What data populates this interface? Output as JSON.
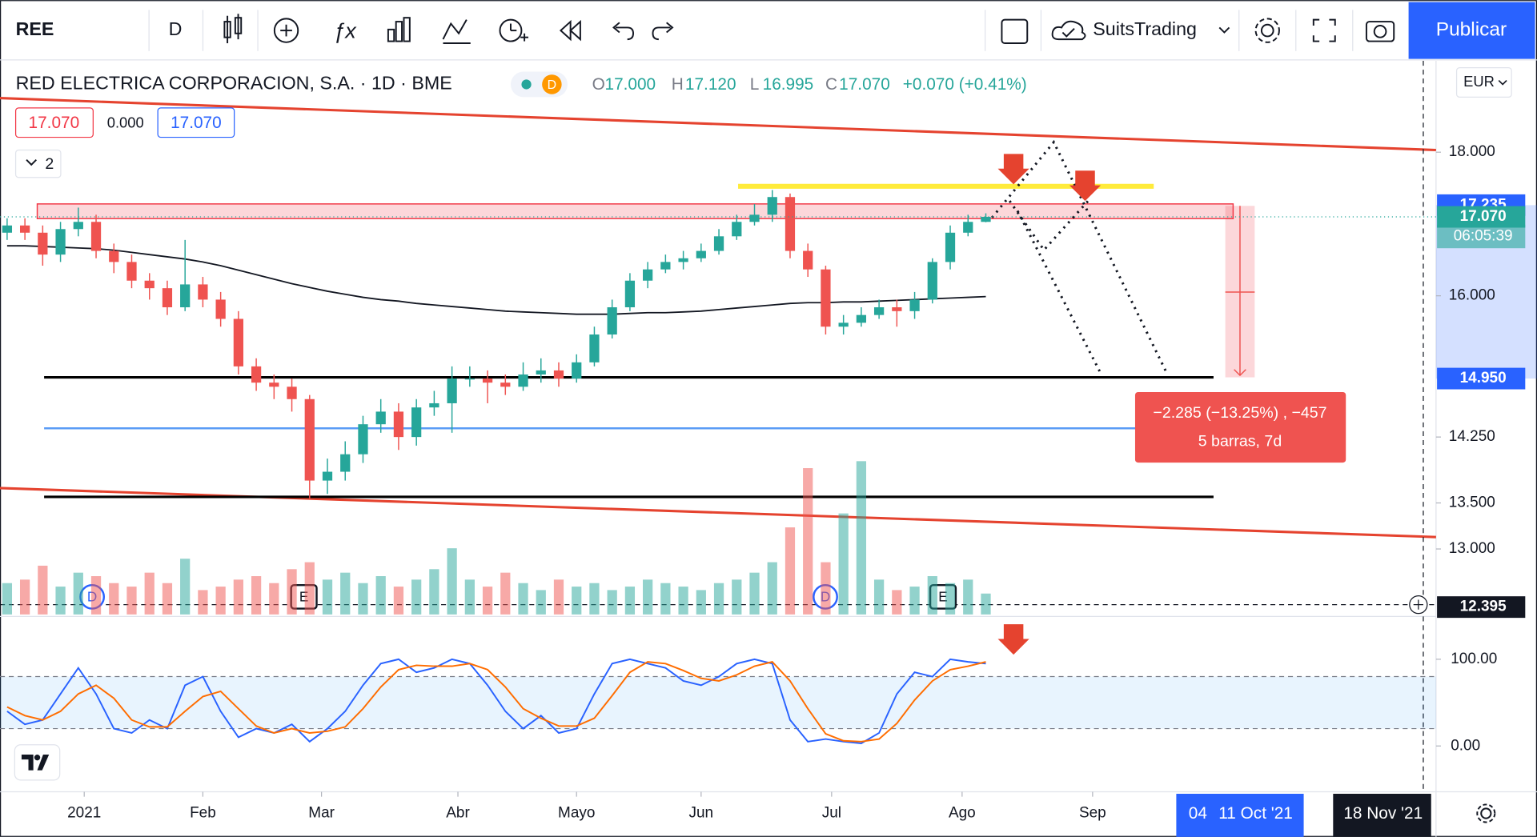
{
  "toolbar": {
    "symbol": "REE",
    "interval": "D",
    "account": "SuitsTrading",
    "publish": "Publicar"
  },
  "legend": {
    "title": "RED ELECTRICA CORPORACION, S.A. · 1D · BME",
    "badge": "D",
    "open_label": "O",
    "open": "17.000",
    "high_label": "H",
    "high": "17.120",
    "low_label": "L",
    "low": "16.995",
    "close_label": "C",
    "close": "17.070",
    "change": "+0.070 (+0.41%)",
    "inputs": [
      "17.070",
      "0.000",
      "17.070"
    ],
    "collapsed_count": "2"
  },
  "currency": "EUR",
  "events": [
    "D",
    "E",
    "D",
    "E"
  ],
  "measure": {
    "line1": "−2.285 (−13.25%) , −457",
    "line2": "5 barras, 7d"
  },
  "time_tags": [
    "04",
    "11 Oct '21",
    "18 Nov '21"
  ],
  "chart_data": [
    {
      "type": "candlestick",
      "x": [
        -13,
        -10,
        -7,
        -4,
        -1,
        2,
        5,
        8,
        11,
        14,
        17,
        20,
        23,
        26,
        29,
        32,
        35,
        38,
        41,
        44,
        47,
        50,
        53,
        56,
        59,
        62,
        65,
        68,
        71,
        74,
        77,
        80,
        83,
        86,
        89,
        92,
        95,
        98,
        101,
        104,
        107,
        110,
        113,
        116,
        119,
        122,
        125,
        128,
        131,
        134,
        137,
        140,
        143,
        146,
        149,
        152
      ],
      "open": [
        16.85,
        16.95,
        16.85,
        16.55,
        16.9,
        17.0,
        16.6,
        16.45,
        16.2,
        16.1,
        15.85,
        16.15,
        15.95,
        15.7,
        15.1,
        14.9,
        14.85,
        14.7,
        13.75,
        13.85,
        14.05,
        14.4,
        14.55,
        14.25,
        14.6,
        14.65,
        14.95,
        14.95,
        14.9,
        14.85,
        15.0,
        15.05,
        14.95,
        15.15,
        15.5,
        15.85,
        16.2,
        16.35,
        16.45,
        16.5,
        16.6,
        16.8,
        17.0,
        17.1,
        17.35,
        16.6,
        16.35,
        15.6,
        15.65,
        15.75,
        15.85,
        15.8,
        15.95,
        16.45,
        16.85,
        17.0
      ],
      "high": [
        17.05,
        17.05,
        16.95,
        17.0,
        17.2,
        17.1,
        16.7,
        16.55,
        16.3,
        16.2,
        16.75,
        16.25,
        16.05,
        15.8,
        15.2,
        15.0,
        14.95,
        14.75,
        14.0,
        14.2,
        14.5,
        14.7,
        14.65,
        14.7,
        14.8,
        15.1,
        15.1,
        15.05,
        15.0,
        15.15,
        15.2,
        15.15,
        15.25,
        15.6,
        15.95,
        16.3,
        16.45,
        16.55,
        16.6,
        16.7,
        16.9,
        17.1,
        17.25,
        17.45,
        17.4,
        16.7,
        16.4,
        15.75,
        15.85,
        15.95,
        15.95,
        16.05,
        16.5,
        16.95,
        17.1,
        17.12
      ],
      "low": [
        16.75,
        16.75,
        16.4,
        16.45,
        16.8,
        16.5,
        16.3,
        16.1,
        15.95,
        15.75,
        15.8,
        15.85,
        15.6,
        15.0,
        14.8,
        14.7,
        14.55,
        13.55,
        13.6,
        13.75,
        13.95,
        14.3,
        14.1,
        14.15,
        14.5,
        14.3,
        14.85,
        14.65,
        14.75,
        14.8,
        14.9,
        14.85,
        14.9,
        15.1,
        15.45,
        15.8,
        16.1,
        16.3,
        16.35,
        16.45,
        16.55,
        16.75,
        16.95,
        17.0,
        16.5,
        16.25,
        15.5,
        15.5,
        15.6,
        15.7,
        15.6,
        15.7,
        15.9,
        16.35,
        16.8,
        16.995
      ],
      "close": [
        16.95,
        16.85,
        16.55,
        16.9,
        17.0,
        16.6,
        16.45,
        16.2,
        16.1,
        15.85,
        16.15,
        15.95,
        15.7,
        15.1,
        14.9,
        14.85,
        14.7,
        13.75,
        13.85,
        14.05,
        14.4,
        14.55,
        14.25,
        14.6,
        14.65,
        14.95,
        14.95,
        14.9,
        14.85,
        15.0,
        15.05,
        14.95,
        15.15,
        15.5,
        15.85,
        16.2,
        16.35,
        16.45,
        16.5,
        16.6,
        16.8,
        17.0,
        17.1,
        17.35,
        16.6,
        16.35,
        15.6,
        15.65,
        15.75,
        15.85,
        15.8,
        15.95,
        16.45,
        16.85,
        17.0,
        17.07
      ],
      "volume": [
        0.9,
        1.0,
        1.4,
        0.8,
        1.2,
        1.1,
        0.9,
        0.8,
        1.2,
        0.9,
        1.6,
        0.7,
        0.8,
        1.0,
        1.1,
        0.9,
        1.3,
        1.5,
        1.0,
        1.2,
        0.9,
        1.1,
        0.8,
        1.0,
        1.3,
        1.9,
        1.0,
        0.8,
        1.2,
        0.9,
        0.7,
        1.0,
        0.8,
        0.9,
        0.7,
        0.8,
        1.0,
        0.9,
        0.8,
        0.7,
        0.9,
        1.0,
        1.2,
        1.5,
        2.5,
        4.2,
        1.5,
        2.9,
        4.4,
        1.0,
        0.7,
        0.8,
        1.1,
        0.9,
        1.0,
        0.6
      ],
      "volume_lim": [
        0,
        4.5
      ],
      "up_color": "#26a69a",
      "down_color": "#ef5350",
      "series": [
        {
          "color": "#131722",
          "values": [
            16.67,
            16.67,
            16.66,
            16.65,
            16.64,
            16.63,
            16.61,
            16.58,
            16.55,
            16.52,
            16.49,
            16.45,
            16.4,
            16.34,
            16.28,
            16.22,
            16.16,
            16.11,
            16.06,
            16.02,
            15.98,
            15.95,
            15.93,
            15.9,
            15.88,
            15.86,
            15.84,
            15.82,
            15.8,
            15.79,
            15.78,
            15.77,
            15.76,
            15.76,
            15.76,
            15.77,
            15.78,
            15.78,
            15.79,
            15.8,
            15.82,
            15.84,
            15.86,
            15.88,
            15.9,
            15.91,
            15.91,
            15.92,
            15.92,
            15.93,
            15.94,
            15.95,
            15.96,
            15.97,
            15.98,
            15.99
          ]
        }
      ],
      "log_scale": true,
      "ylim": [
        12.32,
        19.4
      ],
      "yticks": [
        {
          "value": 13,
          "label": "13.000"
        },
        {
          "value": 13.5,
          "label": "13.500"
        },
        {
          "value": 14.25,
          "label": "14.250"
        },
        {
          "value": 16,
          "label": "16.000"
        },
        {
          "value": 18,
          "label": "18.000"
        }
      ],
      "xlim": [
        -14.2,
        227.9
      ],
      "xticks": [
        {
          "value": 0,
          "label": "2021"
        },
        {
          "value": 20,
          "label": "Feb"
        },
        {
          "value": 40,
          "label": "Mar"
        },
        {
          "value": 63,
          "label": "Abr"
        },
        {
          "value": 83,
          "label": "Mayo"
        },
        {
          "value": 104,
          "label": "Jun"
        },
        {
          "value": 126,
          "label": "Jul"
        },
        {
          "value": 148,
          "label": "Ago"
        },
        {
          "value": 170,
          "label": "Sep"
        }
      ],
      "price_tags": [
        {
          "value": 17.235,
          "label": "17.235",
          "color": "#2962ff"
        },
        {
          "value": 17.07,
          "label": "17.070",
          "color": "#26a69a"
        },
        {
          "value": 14.95,
          "label": "14.950",
          "color": "#2962ff"
        },
        {
          "value": 12.395,
          "label": "12.395",
          "color": "#131722"
        }
      ],
      "countdown": "06:05:39"
    },
    {
      "type": "line",
      "x": [
        -13,
        -10,
        -7,
        -4,
        -1,
        2,
        5,
        8,
        11,
        14,
        17,
        20,
        23,
        26,
        29,
        32,
        35,
        38,
        41,
        44,
        47,
        50,
        53,
        56,
        59,
        62,
        65,
        68,
        71,
        74,
        77,
        80,
        83,
        86,
        89,
        92,
        95,
        98,
        101,
        104,
        107,
        110,
        113,
        116,
        119,
        122,
        125,
        128,
        131,
        134,
        137,
        140,
        143,
        146,
        149,
        152
      ],
      "series": [
        {
          "color": "#2962ff",
          "values": [
            40,
            25,
            30,
            60,
            90,
            60,
            20,
            15,
            30,
            20,
            70,
            80,
            40,
            10,
            20,
            15,
            25,
            5,
            20,
            40,
            70,
            95,
            100,
            85,
            90,
            100,
            95,
            70,
            40,
            20,
            35,
            15,
            20,
            60,
            95,
            100,
            95,
            90,
            75,
            70,
            80,
            95,
            100,
            95,
            30,
            5,
            8,
            5,
            3,
            15,
            60,
            85,
            80,
            100,
            97,
            95
          ]
        },
        {
          "color": "#ff6d00",
          "values": [
            45,
            35,
            30,
            40,
            60,
            70,
            55,
            30,
            22,
            22,
            40,
            57,
            63,
            43,
            23,
            15,
            20,
            15,
            17,
            22,
            43,
            68,
            88,
            93,
            92,
            92,
            95,
            88,
            68,
            43,
            32,
            23,
            23,
            32,
            58,
            85,
            97,
            95,
            87,
            78,
            75,
            82,
            92,
            97,
            75,
            43,
            14,
            6,
            5,
            8,
            26,
            53,
            75,
            88,
            92,
            97
          ]
        }
      ],
      "bands": [
        20,
        80
      ],
      "ylim": [
        -50.6,
        146
      ],
      "yticks": [
        {
          "value": 100,
          "label": "100.00"
        },
        {
          "value": 0,
          "label": "0.00"
        }
      ],
      "xlim": [
        -14.2,
        227.9
      ]
    }
  ]
}
